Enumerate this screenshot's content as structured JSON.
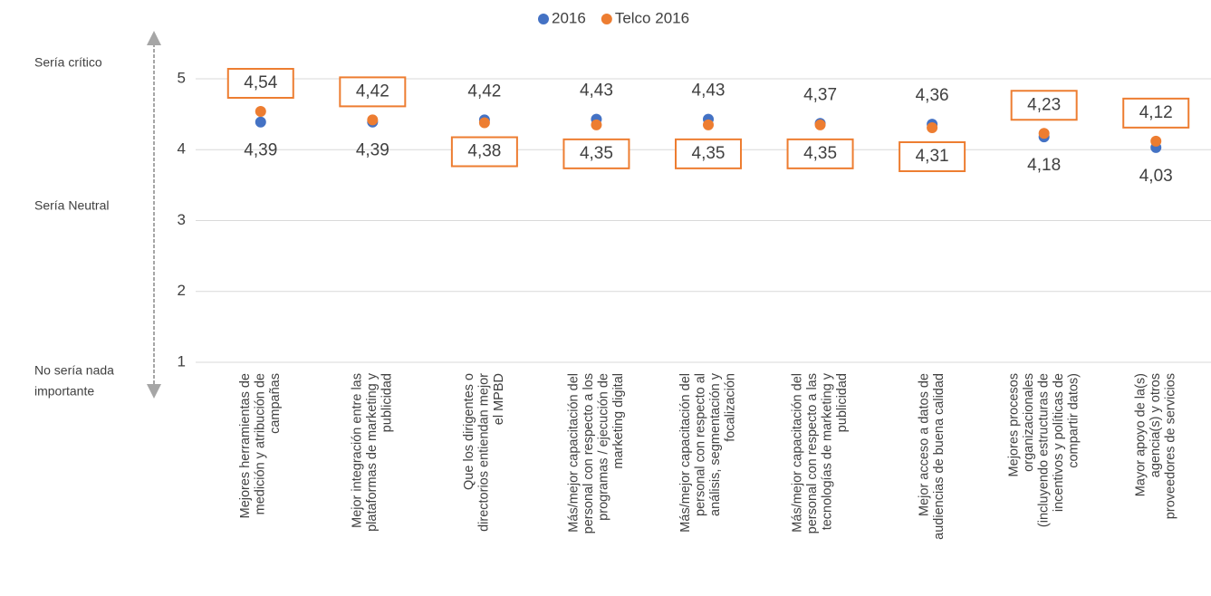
{
  "chart_data": {
    "type": "dot",
    "categories": [
      [
        "Mejores herramientas de",
        "medición y atribución de",
        "campañas"
      ],
      [
        "Mejor integración entre las",
        "plataformas de marketing y",
        "publicidad"
      ],
      [
        "Que los dirigentes o",
        "directorios entiendan mejor",
        "el MPBD"
      ],
      [
        "Más/mejor capacitación del",
        "personal con respecto a los",
        "programas / ejecución de",
        "marketing digital"
      ],
      [
        "Más/mejor capacitación del",
        "personal con respecto al",
        "análisis, segmentación y",
        "focalización"
      ],
      [
        "Más/mejor capacitación del",
        "personal con respecto a las",
        "tecnologías de marketing y",
        "publicidad"
      ],
      [
        "Mejor acceso a datos de",
        "audiencias de buena calidad"
      ],
      [
        "Mejores procesos",
        "organizacionales",
        "(incluyendo estructuras de",
        "incentivos y políticas de",
        "compartir datos)"
      ],
      [
        "Mayor apoyo de la(s)",
        "agencia(s) y otros",
        "proveedores de servicios"
      ]
    ],
    "series": [
      {
        "name": "2016",
        "color": "#4472c4",
        "values": [
          4.39,
          4.39,
          4.42,
          4.43,
          4.43,
          4.37,
          4.36,
          4.18,
          4.03
        ],
        "value_labels": [
          "4,39",
          "4,39",
          "4,42",
          "4,43",
          "4,43",
          "4,37",
          "4,36",
          "4,18",
          "4,03"
        ]
      },
      {
        "name": "Telco 2016",
        "color": "#ed7d31",
        "values": [
          4.54,
          4.42,
          4.38,
          4.35,
          4.35,
          4.35,
          4.31,
          4.23,
          4.12
        ],
        "value_labels": [
          "4,54",
          "4,42",
          "4,38",
          "4,35",
          "4,35",
          "4,35",
          "4,31",
          "4,23",
          "4,12"
        ]
      }
    ],
    "ylim": [
      1,
      5
    ],
    "yticks": [
      1,
      2,
      3,
      4,
      5
    ],
    "grid": true,
    "annotations": [
      [
        "Sería crítico"
      ],
      [
        "Sería Neutral"
      ],
      [
        "No sería nada",
        "importante"
      ]
    ]
  }
}
